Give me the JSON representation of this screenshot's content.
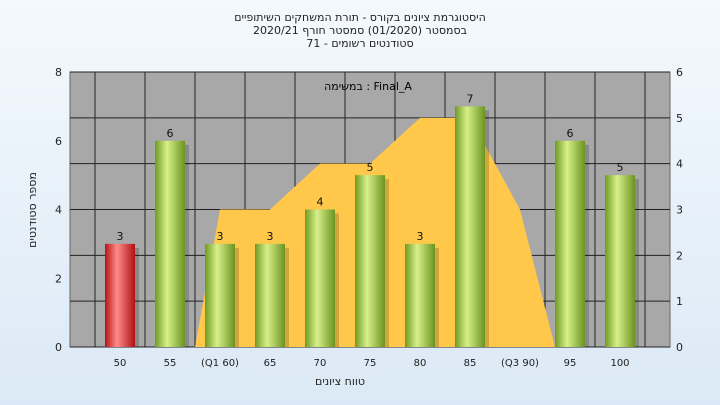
{
  "chart_data": {
    "type": "bar",
    "title_lines": [
      "היסטוגרמת ציונים בקורס - תורת המשחקים השיתופיים",
      "בסמסטר  (01/2020)  סמסטר חורף  2020/21",
      "סטודנטים רשומים - 71"
    ],
    "annotation": "במשימה : Final_A",
    "xlabel": "טווח ציונים",
    "ylabel": "מספר סטודנטים",
    "categories": [
      "50",
      "55",
      "(Q1 60)",
      "65",
      "70",
      "75",
      "80",
      "85",
      "(Q3 90)",
      "95",
      "100"
    ],
    "values": [
      3,
      6,
      3,
      3,
      4,
      5,
      3,
      7,
      0,
      6,
      5
    ],
    "value_labels": [
      "3",
      "6",
      "3",
      "3",
      "4",
      "5",
      "3",
      "7",
      "",
      "6",
      "5"
    ],
    "bar_colors": [
      "#e22b2b",
      "#8fbd3a",
      "#8fbd3a",
      "#8fbd3a",
      "#8fbd3a",
      "#8fbd3a",
      "#8fbd3a",
      "#8fbd3a",
      "#8fbd3a",
      "#8fbd3a",
      "#8fbd3a"
    ],
    "ylim": [
      0,
      8
    ],
    "yticks": [
      "0",
      "2",
      "4",
      "6",
      "8"
    ],
    "y2lim": [
      0,
      6
    ],
    "y2ticks": [
      "0",
      "1",
      "2",
      "3",
      "4",
      "5",
      "6"
    ],
    "area": {
      "color": "#ffc84a",
      "x": [
        1.5,
        2,
        3,
        4,
        5,
        6,
        7,
        8,
        8.7
      ],
      "y": [
        0,
        3,
        3,
        4,
        4,
        5,
        5,
        3,
        0
      ]
    },
    "grid": true,
    "legend": "none"
  }
}
